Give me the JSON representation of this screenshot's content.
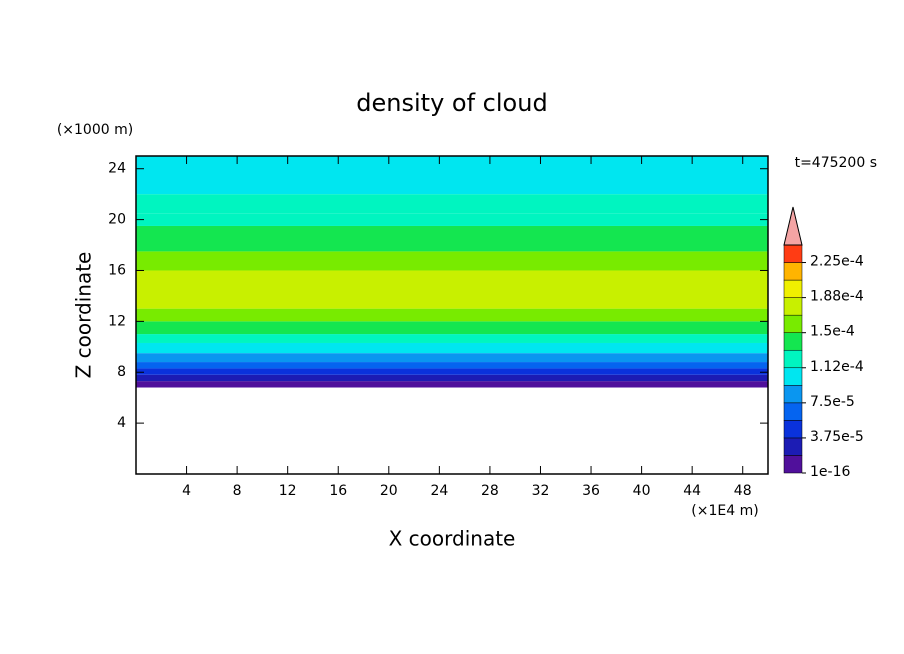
{
  "chart_data": {
    "type": "contour",
    "title": "density of cloud",
    "xlabel": "X coordinate",
    "ylabel": "Z coordinate",
    "xunit": "(×1E4 m)",
    "yunit": "(×1000 m)",
    "annotation": "t=475200 s",
    "xlim": [
      0,
      50
    ],
    "ylim": [
      0,
      25
    ],
    "xticks": [
      4,
      8,
      12,
      16,
      20,
      24,
      28,
      32,
      36,
      40,
      44,
      48
    ],
    "yticks": [
      4,
      8,
      12,
      16,
      20,
      24
    ],
    "z_edges": [
      6.8,
      7.3,
      7.8,
      8.3,
      8.8,
      9.5,
      10.3,
      11,
      12,
      13,
      16,
      17.5,
      19.5,
      20.5,
      22,
      25
    ],
    "values": [
      1e-05,
      2.5e-05,
      4.5e-05,
      6.5e-05,
      8.5e-05,
      0.000105,
      0.00012,
      0.00014,
      0.000155,
      0.00017,
      0.000155,
      0.00014,
      0.000125,
      0.000115,
      0.0001
    ],
    "clim": [
      1e-16,
      0.00024375
    ],
    "colors": [
      "#50109b",
      "#1c1cb4",
      "#0a32dc",
      "#0564f0",
      "#0a96f0",
      "#00e6f0",
      "#00f5c0",
      "#14e650",
      "#78eb00",
      "#c8f000",
      "#f0f000",
      "#ffb400",
      "#ff3c14"
    ],
    "extend_color": "#f4a4a4",
    "cticks": [
      {
        "value": 1e-16,
        "label": "1e-16"
      },
      {
        "value": 3.75e-05,
        "label": "3.75e-5"
      },
      {
        "value": 7.5e-05,
        "label": "7.5e-5"
      },
      {
        "value": 0.0001125,
        "label": "1.12e-4"
      },
      {
        "value": 0.00015,
        "label": "1.5e-4"
      },
      {
        "value": 0.0001875,
        "label": "1.88e-4"
      },
      {
        "value": 0.000225,
        "label": "2.25e-4"
      }
    ]
  }
}
